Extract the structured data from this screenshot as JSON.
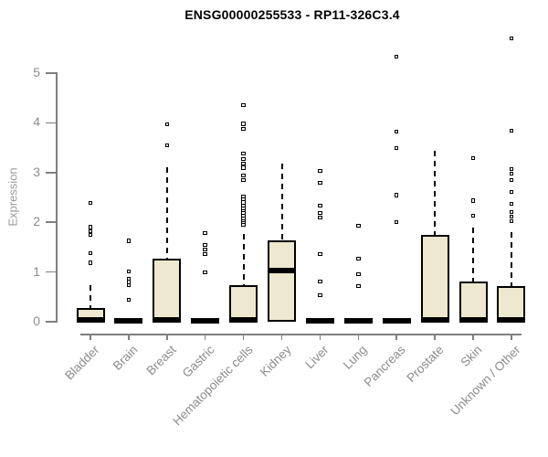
{
  "chart_data": {
    "type": "boxplot",
    "title": "ENSG00000255533 - RP11-326C3.4",
    "xlabel": "",
    "ylabel": "Expression",
    "ylim": [
      0,
      5.8
    ],
    "yticks": [
      0,
      1,
      2,
      3,
      4,
      5
    ],
    "grid": false,
    "legend": "none",
    "categories": [
      "Bladder",
      "Brain",
      "Breast",
      "Gastric",
      "Hematopoietic cells",
      "Kidney",
      "Liver",
      "Lung",
      "Pancreas",
      "Prostate",
      "Skin",
      "Unknown / Other"
    ],
    "series": [
      {
        "category": "Bladder",
        "q1": 0,
        "median": 0.04,
        "q3": 0.28,
        "whisker_low": 0,
        "whisker_high": 0.77,
        "outliers": [
          1.19,
          1.38,
          1.75,
          1.82,
          1.9,
          2.39
        ]
      },
      {
        "category": "Brain",
        "q1": 0,
        "median": 0.02,
        "q3": 0.04,
        "whisker_low": 0,
        "whisker_high": 0.04,
        "outliers": [
          0.44,
          0.74,
          0.8,
          0.86,
          1.01,
          1.63
        ]
      },
      {
        "category": "Breast",
        "q1": 0,
        "median": 0.04,
        "q3": 1.27,
        "whisker_low": 0,
        "whisker_high": 3.14,
        "outliers": [
          3.55,
          3.97
        ]
      },
      {
        "category": "Gastric",
        "q1": 0,
        "median": 0.02,
        "q3": 0.04,
        "whisker_low": 0,
        "whisker_high": 0.04,
        "outliers": [
          0.99,
          1.36,
          1.45,
          1.54,
          1.78
        ]
      },
      {
        "category": "Hematopoietic cells",
        "q1": 0,
        "median": 0.04,
        "q3": 0.74,
        "whisker_low": 0,
        "whisker_high": 1.8,
        "outliers": [
          1.95,
          2.0,
          2.04,
          2.09,
          2.14,
          2.19,
          2.24,
          2.29,
          2.34,
          2.4,
          2.46,
          2.52,
          2.85,
          2.94,
          3.1,
          3.18,
          3.27,
          3.38,
          3.88,
          3.98,
          4.36
        ]
      },
      {
        "category": "Kidney",
        "q1": 0,
        "median": 1.03,
        "q3": 1.64,
        "whisker_low": 0,
        "whisker_high": 3.22,
        "outliers": []
      },
      {
        "category": "Liver",
        "q1": 0,
        "median": 0.02,
        "q3": 0.04,
        "whisker_low": 0,
        "whisker_high": 0.04,
        "outliers": [
          0.53,
          0.81,
          1.36,
          2.1,
          2.19,
          2.33,
          2.79,
          3.03
        ]
      },
      {
        "category": "Lung",
        "q1": 0,
        "median": 0.02,
        "q3": 0.04,
        "whisker_low": 0,
        "whisker_high": 0.04,
        "outliers": [
          0.72,
          0.96,
          1.27,
          1.93
        ]
      },
      {
        "category": "Pancreas",
        "q1": 0,
        "median": 0.02,
        "q3": 0.04,
        "whisker_low": 0,
        "whisker_high": 0.04,
        "outliers": [
          2.0,
          2.55,
          3.49,
          3.82,
          5.33
        ]
      },
      {
        "category": "Prostate",
        "q1": 0,
        "median": 0.04,
        "q3": 1.75,
        "whisker_low": 0,
        "whisker_high": 3.47,
        "outliers": []
      },
      {
        "category": "Skin",
        "q1": 0,
        "median": 0.04,
        "q3": 0.81,
        "whisker_low": 0,
        "whisker_high": 1.93,
        "outliers": [
          2.13,
          2.44,
          3.29
        ]
      },
      {
        "category": "Unknown / Other",
        "q1": 0,
        "median": 0.04,
        "q3": 0.72,
        "whisker_low": 0,
        "whisker_high": 1.84,
        "outliers": [
          2.02,
          2.11,
          2.21,
          2.37,
          2.61,
          2.85,
          2.98,
          3.07,
          3.84,
          5.7
        ]
      }
    ],
    "colors": {
      "box_fill": "#ede8cf",
      "box_border": "#000000",
      "median": "#000000",
      "outlier_fill": "#ffffff",
      "axis": "#7f7f7f",
      "axis_label": "#8c8c8c",
      "title": "#000000",
      "background": "#ffffff"
    }
  }
}
